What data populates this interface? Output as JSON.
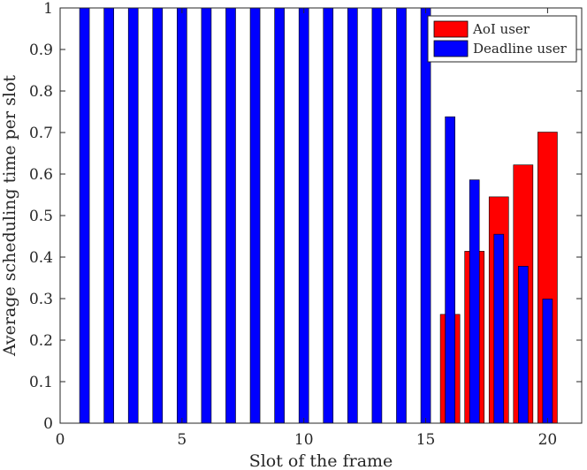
{
  "chart_data": {
    "type": "bar",
    "xlabel": "Slot of the frame",
    "ylabel": "Average scheduling time per slot",
    "xlim": [
      0,
      21.4
    ],
    "ylim": [
      0,
      1
    ],
    "xticks": [
      0,
      5,
      10,
      15,
      20
    ],
    "yticks": [
      0,
      0.1,
      0.2,
      0.3,
      0.4,
      0.5,
      0.6,
      0.7,
      0.8,
      0.9,
      1
    ],
    "xtick_labels": [
      "0",
      "5",
      "10",
      "15",
      "20"
    ],
    "ytick_labels": [
      "0",
      "0.1",
      "0.2",
      "0.3",
      "0.4",
      "0.5",
      "0.6",
      "0.7",
      "0.8",
      "0.9",
      "1"
    ],
    "legend_position": "top-right",
    "grid": false,
    "x": [
      1,
      2,
      3,
      4,
      5,
      6,
      7,
      8,
      9,
      10,
      11,
      12,
      13,
      14,
      15,
      16,
      17,
      18,
      19,
      20
    ],
    "series": [
      {
        "name": "AoI user",
        "color": "#ff0000",
        "values": [
          0,
          0,
          0,
          0,
          0,
          0,
          0,
          0,
          0,
          0,
          0,
          0,
          0,
          0,
          0,
          0.262,
          0.414,
          0.545,
          0.622,
          0.701
        ]
      },
      {
        "name": "Deadline user",
        "color": "#0000ff",
        "values": [
          1,
          1,
          1,
          1,
          1,
          1,
          1,
          1,
          1,
          1,
          1,
          1,
          1,
          1,
          1,
          0.738,
          0.586,
          0.455,
          0.378,
          0.299
        ]
      }
    ]
  }
}
